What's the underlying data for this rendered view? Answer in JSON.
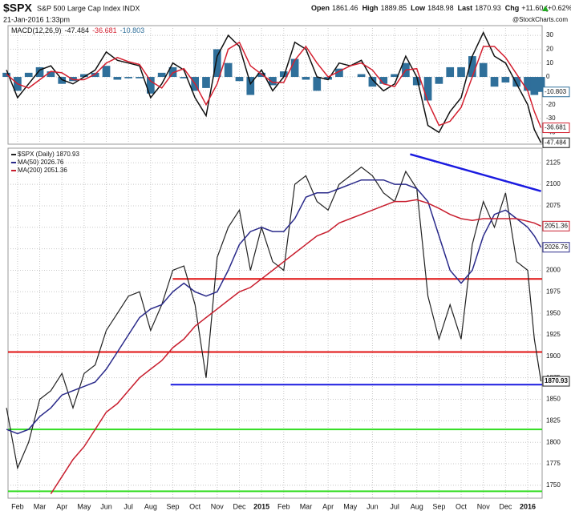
{
  "header": {
    "symbol": "$SPX",
    "name": "S&P 500 Large Cap Index INDX",
    "date": "21-Jan-2016 1:33pm",
    "credit": "@StockCharts.com",
    "quote": [
      {
        "label": "Open",
        "value": "1861.46"
      },
      {
        "label": "High",
        "value": "1889.85"
      },
      {
        "label": "Low",
        "value": "1848.98"
      },
      {
        "label": "Last",
        "value": "1870.93"
      },
      {
        "label": "Chg",
        "value": "+11.60 (+0.62%)"
      }
    ]
  },
  "chart_data": [
    {
      "type": "line",
      "legend": "MACD(12,26,9)",
      "x": [
        -0.5,
        0,
        0.5,
        1,
        1.5,
        2,
        2.5,
        3,
        3.5,
        4,
        4.5,
        5,
        5.5,
        6,
        6.5,
        7,
        7.5,
        8,
        8.5,
        9,
        9.5,
        10,
        10.5,
        11,
        11.5,
        12,
        12.5,
        13,
        13.5,
        14,
        14.5,
        15,
        15.5,
        16,
        16.5,
        17,
        17.5,
        18,
        18.5,
        19,
        19.5,
        20,
        20.5,
        21,
        21.5,
        22,
        22.5,
        23,
        23.3,
        23.6
      ],
      "series": [
        {
          "color": "#111111",
          "last_label": "-47.484",
          "values": [
            5,
            -15,
            -5,
            5,
            8,
            -2,
            -5,
            0,
            5,
            18,
            12,
            10,
            8,
            -15,
            -5,
            10,
            5,
            -15,
            -28,
            15,
            30,
            22,
            -5,
            5,
            -10,
            0,
            25,
            20,
            0,
            -2,
            10,
            8,
            12,
            -2,
            -10,
            -5,
            15,
            0,
            -35,
            -40,
            -25,
            -15,
            15,
            32,
            15,
            10,
            -5,
            -20,
            -38,
            -47.484
          ]
        },
        {
          "color": "#d42030",
          "last_label": "-36.681",
          "values": [
            2,
            -5,
            -8,
            -2,
            4,
            3,
            -2,
            -2,
            2,
            10,
            14,
            11,
            9,
            -3,
            -8,
            3,
            6,
            -5,
            -20,
            -5,
            20,
            25,
            8,
            2,
            -4,
            -4,
            12,
            22,
            10,
            0,
            4,
            8,
            10,
            5,
            -5,
            -7,
            5,
            6,
            -18,
            -35,
            -32,
            -22,
            0,
            22,
            22,
            14,
            2,
            -10,
            -25,
            -36.681
          ]
        },
        {
          "type": "bar",
          "color": "#2f6f9a",
          "last_label": "-10.803",
          "values": [
            3,
            -10,
            3,
            7,
            4,
            -5,
            -3,
            2,
            3,
            8,
            -2,
            -1,
            -1,
            -12,
            3,
            7,
            -1,
            -10,
            -8,
            20,
            10,
            -3,
            -13,
            3,
            -6,
            4,
            13,
            -2,
            -10,
            -2,
            6,
            0,
            2,
            -7,
            -5,
            2,
            10,
            -6,
            -17,
            -5,
            7,
            7,
            15,
            10,
            -7,
            -4,
            -7,
            -10,
            -13,
            -10.803
          ]
        }
      ],
      "ylim": [
        -48.5,
        37
      ],
      "yticks": [
        30,
        20,
        10,
        0,
        -10,
        -20,
        -30,
        -40
      ]
    },
    {
      "type": "line",
      "x": [
        -0.5,
        0,
        0.5,
        1,
        1.5,
        2,
        2.5,
        3,
        3.5,
        4,
        4.5,
        5,
        5.5,
        6,
        6.5,
        7,
        7.5,
        8,
        8.5,
        9,
        9.5,
        10,
        10.5,
        11,
        11.5,
        12,
        12.5,
        13,
        13.5,
        14,
        14.5,
        15,
        15.5,
        16,
        16.5,
        17,
        17.5,
        18,
        18.5,
        19,
        19.5,
        20,
        20.5,
        21,
        21.5,
        22,
        22.5,
        23,
        23.3,
        23.6
      ],
      "series": [
        {
          "name": "$SPX (Daily) 1870.93",
          "color": "#222222",
          "last_label": "1870.93",
          "values": [
            1840,
            1770,
            1800,
            1850,
            1860,
            1880,
            1840,
            1880,
            1890,
            1930,
            1950,
            1970,
            1975,
            1930,
            1960,
            2000,
            2005,
            1960,
            1875,
            2015,
            2050,
            2070,
            2000,
            2050,
            2010,
            2000,
            2100,
            2110,
            2080,
            2070,
            2100,
            2110,
            2120,
            2110,
            2090,
            2080,
            2115,
            2095,
            1970,
            1920,
            1960,
            1920,
            2030,
            2080,
            2050,
            2090,
            2010,
            2000,
            1920,
            1870.93
          ]
        },
        {
          "name": "MA(50) 2026.76",
          "color": "#2a2a8a",
          "last_label": "2026.76",
          "values": [
            1815,
            1810,
            1815,
            1830,
            1840,
            1855,
            1860,
            1865,
            1870,
            1885,
            1905,
            1925,
            1945,
            1955,
            1960,
            1975,
            1985,
            1975,
            1970,
            1975,
            2000,
            2030,
            2045,
            2050,
            2045,
            2045,
            2060,
            2085,
            2090,
            2090,
            2095,
            2100,
            2105,
            2105,
            2105,
            2100,
            2100,
            2095,
            2080,
            2040,
            2000,
            1985,
            2000,
            2040,
            2065,
            2070,
            2060,
            2050,
            2040,
            2026.76
          ]
        },
        {
          "name": "MA(200) 2051.36",
          "color": "#c81e2e",
          "last_label": "2051.36",
          "values": [
            null,
            null,
            null,
            null,
            1740,
            1760,
            1780,
            1795,
            1815,
            1835,
            1845,
            1860,
            1875,
            1885,
            1895,
            1910,
            1920,
            1935,
            1945,
            1955,
            1965,
            1975,
            1980,
            1990,
            2000,
            2010,
            2020,
            2030,
            2040,
            2045,
            2055,
            2060,
            2065,
            2070,
            2075,
            2080,
            2080,
            2082,
            2078,
            2072,
            2065,
            2060,
            2058,
            2060,
            2060,
            2060,
            2060,
            2057,
            2055,
            2051.36
          ]
        }
      ],
      "levels": [
        {
          "value": 1990,
          "from": 7,
          "color": "#e01010"
        },
        {
          "value": 1905,
          "from": -0.43,
          "color": "#e01010"
        },
        {
          "value": 1867,
          "from": 6.9,
          "color": "#1a1ae0"
        },
        {
          "value": 1815,
          "from": -0.43,
          "color": "#33dd22"
        },
        {
          "value": 1743,
          "from": -0.43,
          "color": "#33dd22"
        }
      ],
      "trendline": {
        "color": "#1a1ae0",
        "x": [
          17.7,
          23.6
        ],
        "y": [
          2135,
          2092
        ]
      },
      "ylim": [
        1735,
        2142
      ],
      "yticks": [
        2125,
        2100,
        2075,
        2050,
        2025,
        2000,
        1975,
        1950,
        1925,
        1900,
        1875,
        1850,
        1825,
        1800,
        1775,
        1750
      ],
      "xlim": [
        -0.43,
        23.65
      ],
      "xticks": [
        {
          "value": 0,
          "label": "Feb"
        },
        {
          "value": 1,
          "label": "Mar"
        },
        {
          "value": 2,
          "label": "Apr"
        },
        {
          "value": 3,
          "label": "May"
        },
        {
          "value": 4,
          "label": "Jun"
        },
        {
          "value": 5,
          "label": "Jul"
        },
        {
          "value": 6,
          "label": "Aug"
        },
        {
          "value": 7,
          "label": "Sep"
        },
        {
          "value": 8,
          "label": "Oct"
        },
        {
          "value": 9,
          "label": "Nov"
        },
        {
          "value": 10,
          "label": "Dec"
        },
        {
          "value": 11,
          "label": "2015"
        },
        {
          "value": 12,
          "label": "Feb"
        },
        {
          "value": 13,
          "label": "Mar"
        },
        {
          "value": 14,
          "label": "Apr"
        },
        {
          "value": 15,
          "label": "May"
        },
        {
          "value": 16,
          "label": "Jun"
        },
        {
          "value": 17,
          "label": "Jul"
        },
        {
          "value": 18,
          "label": "Aug"
        },
        {
          "value": 19,
          "label": "Sep"
        },
        {
          "value": 20,
          "label": "Oct"
        },
        {
          "value": 21,
          "label": "Nov"
        },
        {
          "value": 22,
          "label": "Dec"
        },
        {
          "value": 23,
          "label": "2016"
        }
      ]
    }
  ]
}
